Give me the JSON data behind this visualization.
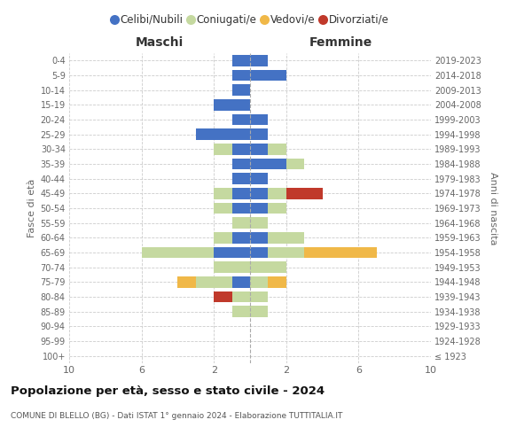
{
  "age_groups": [
    "100+",
    "95-99",
    "90-94",
    "85-89",
    "80-84",
    "75-79",
    "70-74",
    "65-69",
    "60-64",
    "55-59",
    "50-54",
    "45-49",
    "40-44",
    "35-39",
    "30-34",
    "25-29",
    "20-24",
    "15-19",
    "10-14",
    "5-9",
    "0-4"
  ],
  "birth_years": [
    "≤ 1923",
    "1924-1928",
    "1929-1933",
    "1934-1938",
    "1939-1943",
    "1944-1948",
    "1949-1953",
    "1954-1958",
    "1959-1963",
    "1964-1968",
    "1969-1973",
    "1974-1978",
    "1979-1983",
    "1984-1988",
    "1989-1993",
    "1994-1998",
    "1999-2003",
    "2004-2008",
    "2009-2013",
    "2014-2018",
    "2019-2023"
  ],
  "male": {
    "celibi": [
      0,
      0,
      0,
      0,
      0,
      1,
      0,
      2,
      1,
      0,
      1,
      1,
      1,
      1,
      1,
      3,
      1,
      2,
      1,
      1,
      1
    ],
    "coniugati": [
      0,
      0,
      0,
      1,
      1,
      2,
      2,
      4,
      1,
      1,
      1,
      1,
      0,
      0,
      1,
      0,
      0,
      0,
      0,
      0,
      0
    ],
    "vedovi": [
      0,
      0,
      0,
      0,
      0,
      1,
      0,
      0,
      0,
      0,
      0,
      0,
      0,
      0,
      0,
      0,
      0,
      0,
      0,
      0,
      0
    ],
    "divorziati": [
      0,
      0,
      0,
      0,
      1,
      0,
      0,
      0,
      0,
      0,
      0,
      0,
      0,
      0,
      0,
      0,
      0,
      0,
      0,
      0,
      0
    ]
  },
  "female": {
    "nubili": [
      0,
      0,
      0,
      0,
      0,
      0,
      0,
      1,
      1,
      0,
      1,
      1,
      1,
      2,
      1,
      1,
      1,
      0,
      0,
      2,
      1
    ],
    "coniugate": [
      0,
      0,
      0,
      1,
      1,
      1,
      2,
      2,
      2,
      1,
      1,
      1,
      0,
      1,
      1,
      0,
      0,
      0,
      0,
      0,
      0
    ],
    "vedove": [
      0,
      0,
      0,
      0,
      0,
      1,
      0,
      4,
      0,
      0,
      0,
      0,
      0,
      0,
      0,
      0,
      0,
      0,
      0,
      0,
      0
    ],
    "divorziate": [
      0,
      0,
      0,
      0,
      0,
      0,
      0,
      0,
      0,
      0,
      0,
      2,
      0,
      0,
      0,
      0,
      0,
      0,
      0,
      0,
      0
    ]
  },
  "color_celibi": "#4472c4",
  "color_coniugati": "#c5d9a0",
  "color_vedovi": "#f0b848",
  "color_divorziati": "#c0392b",
  "title": "Popolazione per età, sesso e stato civile - 2024",
  "subtitle": "COMUNE DI BLELLO (BG) - Dati ISTAT 1° gennaio 2024 - Elaborazione TUTTITALIA.IT",
  "xlabel_left": "Maschi",
  "xlabel_right": "Femmine",
  "ylabel_left": "Fasce di età",
  "ylabel_right": "Anni di nascita",
  "xlim": 10,
  "background_color": "#ffffff"
}
